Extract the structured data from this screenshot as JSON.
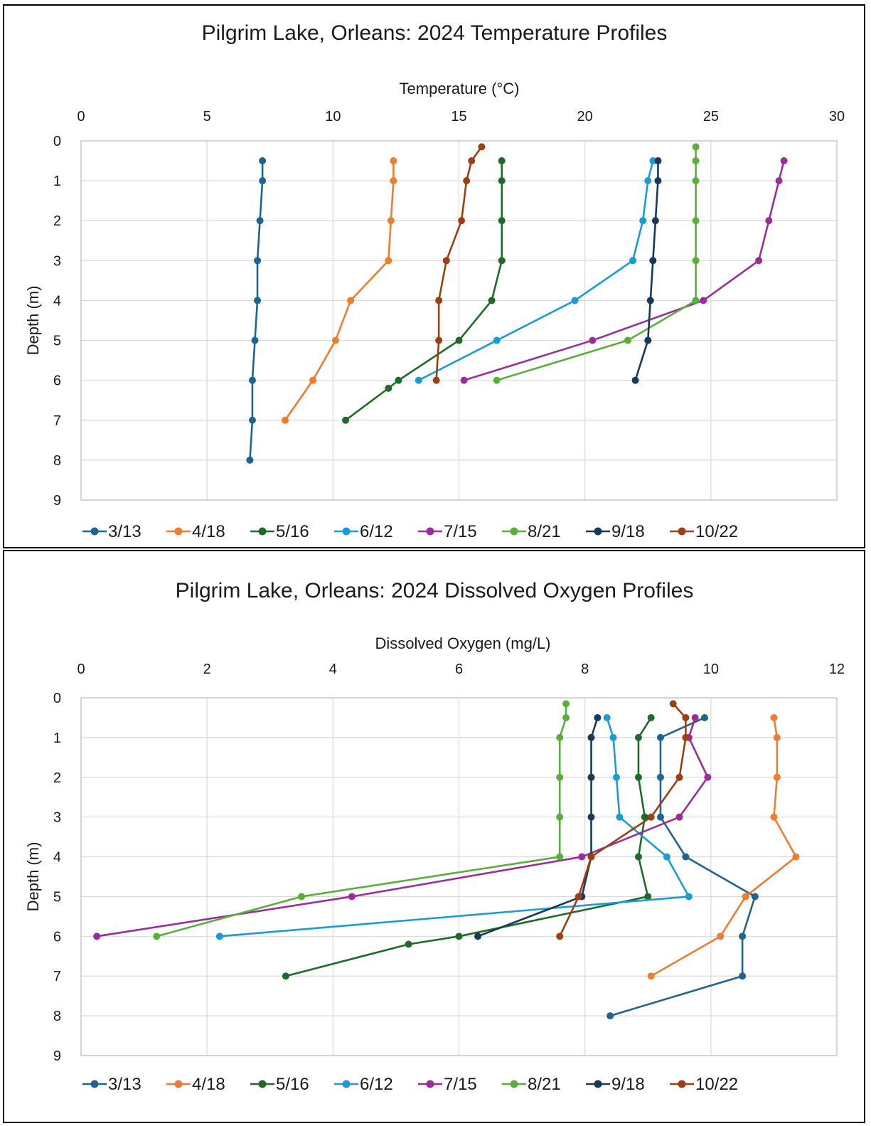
{
  "chart_data": [
    {
      "type": "line",
      "title": "Pilgrim Lake, Orleans:  2024 Temperature Profiles",
      "xlabel": "Temperature (°C)",
      "ylabel": "Depth (m)",
      "xlim": [
        0,
        30
      ],
      "ylim": [
        0,
        9
      ],
      "x_ticks": [
        "0",
        "5",
        "10",
        "15",
        "20",
        "25",
        "30"
      ],
      "y_ticks": [
        "0",
        "1",
        "2",
        "3",
        "4",
        "5",
        "6",
        "7",
        "8",
        "9"
      ],
      "y_inverted": true,
      "x_axis_position": "top",
      "grid": true,
      "legend_position": "bottom",
      "series": [
        {
          "name": "3/13",
          "color": "#1f6391",
          "x": [
            7.2,
            7.2,
            7.1,
            7.0,
            7.0,
            6.9,
            6.8,
            6.8,
            6.7
          ],
          "y": [
            0.5,
            1,
            2,
            3,
            4,
            5,
            6,
            7,
            8
          ]
        },
        {
          "name": "4/18",
          "color": "#ed7d31",
          "x": [
            12.4,
            12.4,
            12.3,
            12.2,
            10.7,
            10.1,
            9.2,
            8.1
          ],
          "y": [
            0.5,
            1,
            2,
            3,
            4,
            5,
            6,
            7
          ]
        },
        {
          "name": "5/16",
          "color": "#1e6b28",
          "x": [
            16.7,
            16.7,
            16.7,
            16.7,
            16.3,
            15.0,
            12.6,
            12.2,
            10.5
          ],
          "y": [
            0.5,
            1,
            2,
            3,
            4,
            5,
            6,
            6.2,
            7
          ]
        },
        {
          "name": "6/12",
          "color": "#1c9ad6",
          "x": [
            22.7,
            22.5,
            22.3,
            21.9,
            19.6,
            16.5,
            13.4
          ],
          "y": [
            0.5,
            1,
            2,
            3,
            4,
            5,
            6
          ]
        },
        {
          "name": "7/15",
          "color": "#9b2d9b",
          "x": [
            27.9,
            27.7,
            27.3,
            26.9,
            24.7,
            20.3,
            15.2
          ],
          "y": [
            0.5,
            1,
            2,
            3,
            4,
            5,
            6
          ]
        },
        {
          "name": "8/21",
          "color": "#5aae3c",
          "x": [
            24.4,
            24.4,
            24.4,
            24.4,
            24.4,
            24.4,
            21.7,
            16.5
          ],
          "y": [
            0.15,
            0.5,
            1,
            2,
            3,
            4,
            5,
            6
          ]
        },
        {
          "name": "9/18",
          "color": "#163a59",
          "x": [
            22.9,
            22.9,
            22.8,
            22.7,
            22.6,
            22.5,
            22.0
          ],
          "y": [
            0.5,
            1,
            2,
            3,
            4,
            5,
            6
          ]
        },
        {
          "name": "10/22",
          "color": "#9c3f12",
          "x": [
            15.9,
            15.5,
            15.3,
            15.1,
            14.5,
            14.2,
            14.2,
            14.1
          ],
          "y": [
            0.15,
            0.5,
            1,
            2,
            3,
            4,
            5,
            6
          ]
        }
      ]
    },
    {
      "type": "line",
      "title": "Pilgrim Lake, Orleans:  2024 Dissolved Oxygen Profiles",
      "xlabel": "Dissolved Oxygen (mg/L)",
      "ylabel": "Depth (m)",
      "xlim": [
        0,
        12
      ],
      "ylim": [
        0,
        9
      ],
      "x_ticks": [
        "0",
        "2",
        "4",
        "6",
        "8",
        "10",
        "12"
      ],
      "y_ticks": [
        "0",
        "1",
        "2",
        "3",
        "4",
        "5",
        "6",
        "7",
        "8",
        "9"
      ],
      "y_inverted": true,
      "x_axis_position": "top",
      "grid": true,
      "legend_position": "bottom",
      "series": [
        {
          "name": "3/13",
          "color": "#1f6391",
          "x": [
            9.9,
            9.2,
            9.2,
            9.2,
            9.6,
            10.7,
            10.5,
            10.5,
            8.4
          ],
          "y": [
            0.5,
            1,
            2,
            3,
            4,
            5,
            6,
            7,
            8
          ]
        },
        {
          "name": "4/18",
          "color": "#ed7d31",
          "x": [
            11.0,
            11.05,
            11.05,
            11.0,
            11.35,
            10.55,
            10.15,
            9.05
          ],
          "y": [
            0.5,
            1,
            2,
            3,
            4,
            5,
            6,
            7
          ]
        },
        {
          "name": "5/16",
          "color": "#1e6b28",
          "x": [
            9.05,
            8.85,
            8.85,
            8.95,
            8.85,
            9.0,
            6.0,
            5.2,
            3.25
          ],
          "y": [
            0.5,
            1,
            2,
            3,
            4,
            5,
            6,
            6.2,
            7
          ]
        },
        {
          "name": "6/12",
          "color": "#1c9ad6",
          "x": [
            8.35,
            8.45,
            8.5,
            8.55,
            9.3,
            9.65,
            2.2
          ],
          "y": [
            0.5,
            1,
            2,
            3,
            4,
            5,
            6
          ]
        },
        {
          "name": "7/15",
          "color": "#9b2d9b",
          "x": [
            9.75,
            9.65,
            9.95,
            9.5,
            7.95,
            4.3,
            0.25
          ],
          "y": [
            0.5,
            1,
            2,
            3,
            4,
            5,
            6
          ]
        },
        {
          "name": "8/21",
          "color": "#5aae3c",
          "x": [
            7.7,
            7.7,
            7.6,
            7.6,
            7.6,
            7.6,
            3.5,
            1.2
          ],
          "y": [
            0.15,
            0.5,
            1,
            2,
            3,
            4,
            5,
            6
          ]
        },
        {
          "name": "9/18",
          "color": "#163a59",
          "x": [
            8.2,
            8.1,
            8.1,
            8.1,
            8.1,
            7.95,
            6.3
          ],
          "y": [
            0.5,
            1,
            2,
            3,
            4,
            5,
            6
          ]
        },
        {
          "name": "10/22",
          "color": "#9c3f12",
          "x": [
            9.4,
            9.6,
            9.6,
            9.5,
            9.05,
            8.1,
            7.9,
            7.6
          ],
          "y": [
            0.15,
            0.5,
            1,
            2,
            3,
            4,
            5,
            6
          ]
        }
      ]
    }
  ]
}
